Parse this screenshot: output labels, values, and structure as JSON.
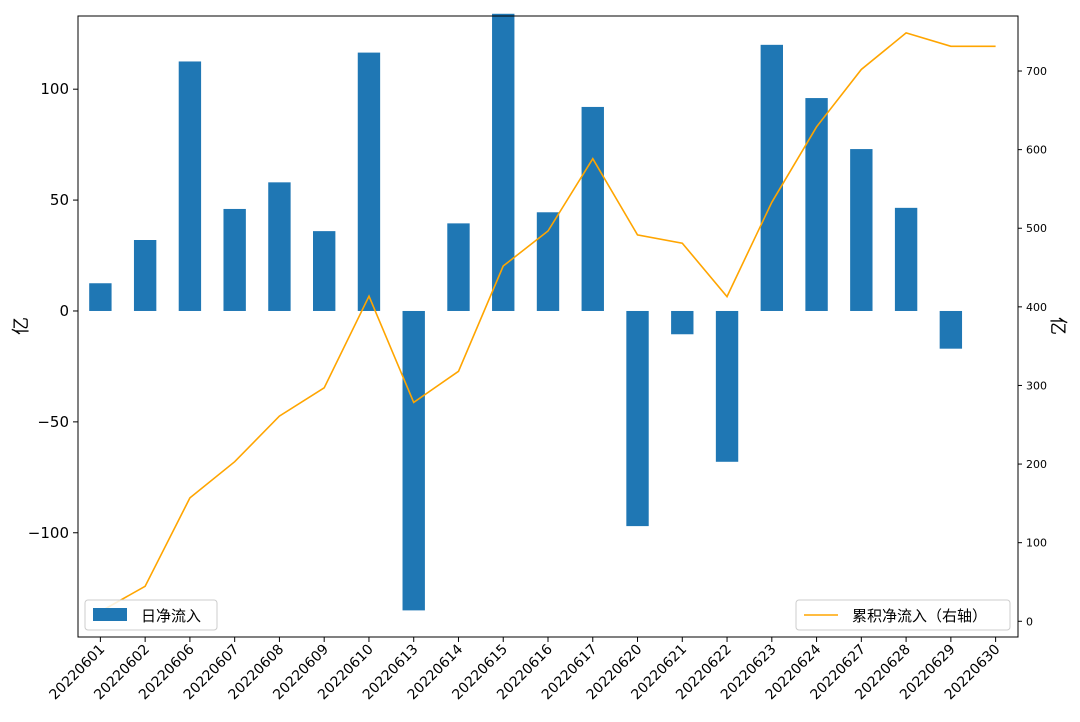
{
  "chart_data": {
    "type": "bar",
    "categories": [
      "20220601",
      "20220602",
      "20220606",
      "20220607",
      "20220608",
      "20220609",
      "20220610",
      "20220613",
      "20220614",
      "20220615",
      "20220616",
      "20220617",
      "20220620",
      "20220621",
      "20220622",
      "20220623",
      "20220624",
      "20220627",
      "20220628",
      "20220629",
      "20220630"
    ],
    "series": [
      {
        "name": "日净流入",
        "type": "bar",
        "axis": "left",
        "color": "#1f77b4",
        "values": [
          12.5,
          32,
          112.5,
          46,
          58,
          36,
          116.5,
          -135,
          39.5,
          134,
          44.5,
          92,
          -97,
          -10.5,
          -68,
          120,
          96,
          73,
          46.5,
          -17,
          0
        ]
      },
      {
        "name": "累积净流入（右轴）",
        "type": "line",
        "axis": "right",
        "color": "#ffa500",
        "values": [
          12.5,
          44.5,
          157,
          203,
          261,
          297,
          413.5,
          278.5,
          318,
          452,
          496.5,
          588.5,
          491.5,
          481,
          413,
          533,
          629,
          702,
          748.5,
          731.5,
          731.5
        ]
      }
    ],
    "ylabel_left": "亿",
    "ylabel_right": "亿",
    "ylim_left": [
      -147,
      133
    ],
    "ylim_right": [
      -20,
      770
    ],
    "yticks_left": [
      -100,
      -50,
      0,
      50,
      100
    ],
    "yticks_right": [
      0,
      100,
      200,
      300,
      400,
      500,
      600,
      700
    ],
    "legend_bar": {
      "label": "日净流入",
      "placement": "lower-left"
    },
    "legend_line": {
      "label": "累积净流入（右轴）",
      "placement": "lower-right"
    },
    "grid": false
  }
}
